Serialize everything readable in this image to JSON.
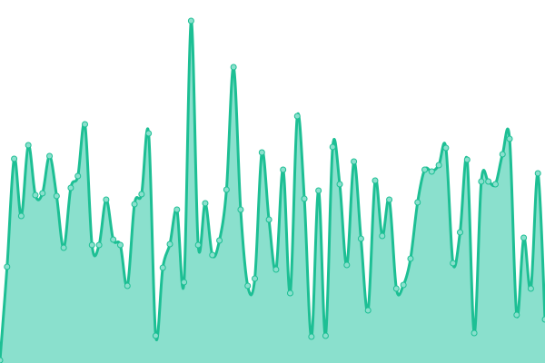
{
  "chart_data": {
    "type": "area",
    "title": "",
    "xlabel": "",
    "ylabel": "",
    "ylim": [
      0,
      400
    ],
    "grid": false,
    "legend": "none",
    "colors": {
      "line": "#1dbf94",
      "fill": "#8ae0cd",
      "point_fill": "#8ae0cd",
      "point_stroke": "#1dbf94"
    },
    "series": [
      {
        "values": [
          3,
          106,
          225,
          162,
          240,
          185,
          187,
          228,
          184,
          127,
          193,
          206,
          263,
          130,
          130,
          180,
          136,
          130,
          85,
          175,
          186,
          253,
          30,
          105,
          131,
          169,
          89,
          377,
          130,
          176,
          119,
          135,
          191,
          326,
          169,
          85,
          93,
          232,
          158,
          103,
          213,
          77,
          272,
          181,
          29,
          190,
          30,
          238,
          197,
          108,
          222,
          137,
          58,
          201,
          140,
          180,
          82,
          86,
          115,
          177,
          213,
          211,
          218,
          237,
          110,
          144,
          224,
          33,
          200,
          200,
          197,
          230,
          247,
          53,
          138,
          82,
          209,
          48
        ]
      }
    ]
  }
}
